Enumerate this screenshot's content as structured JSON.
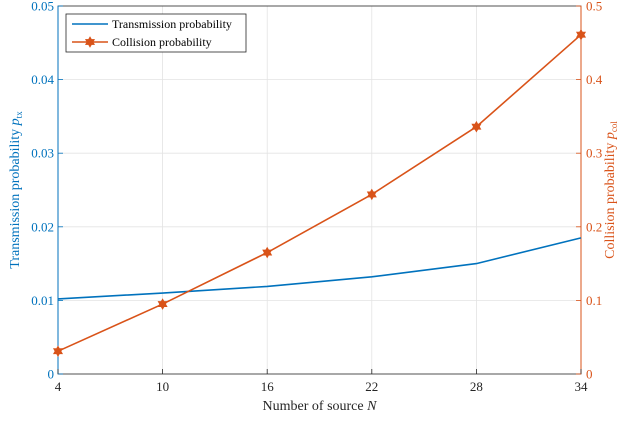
{
  "chart_data": {
    "type": "line",
    "x": [
      4,
      10,
      16,
      22,
      28,
      34
    ],
    "xlabel": "Number of source ",
    "xlabel_var": "N",
    "xlim": [
      4,
      34
    ],
    "xticks": [
      "4",
      "10",
      "16",
      "22",
      "28",
      "34"
    ],
    "y_left": {
      "label": "Transmission probability ",
      "label_var": "p",
      "label_sub": "tx",
      "lim": [
        0,
        0.05
      ],
      "ticks": [
        "0",
        "0.01",
        "0.02",
        "0.03",
        "0.04",
        "0.05"
      ],
      "color": "#0072BD"
    },
    "y_right": {
      "label": "Collision probability ",
      "label_var": "p",
      "label_sub": "col",
      "lim": [
        0,
        0.5
      ],
      "ticks": [
        "0",
        "0.1",
        "0.2",
        "0.3",
        "0.4",
        "0.5"
      ],
      "color": "#D95319"
    },
    "grid": true,
    "legend_position": "top-left",
    "series": [
      {
        "name": "Transmission probability",
        "axis": "left",
        "marker": "none",
        "color": "#0072BD",
        "values": [
          0.0102,
          0.011,
          0.0119,
          0.0132,
          0.015,
          0.0185
        ]
      },
      {
        "name": "Collision probability",
        "axis": "right",
        "marker": "hexagram",
        "color": "#D95319",
        "values": [
          0.031,
          0.095,
          0.165,
          0.244,
          0.336,
          0.461
        ]
      }
    ]
  }
}
